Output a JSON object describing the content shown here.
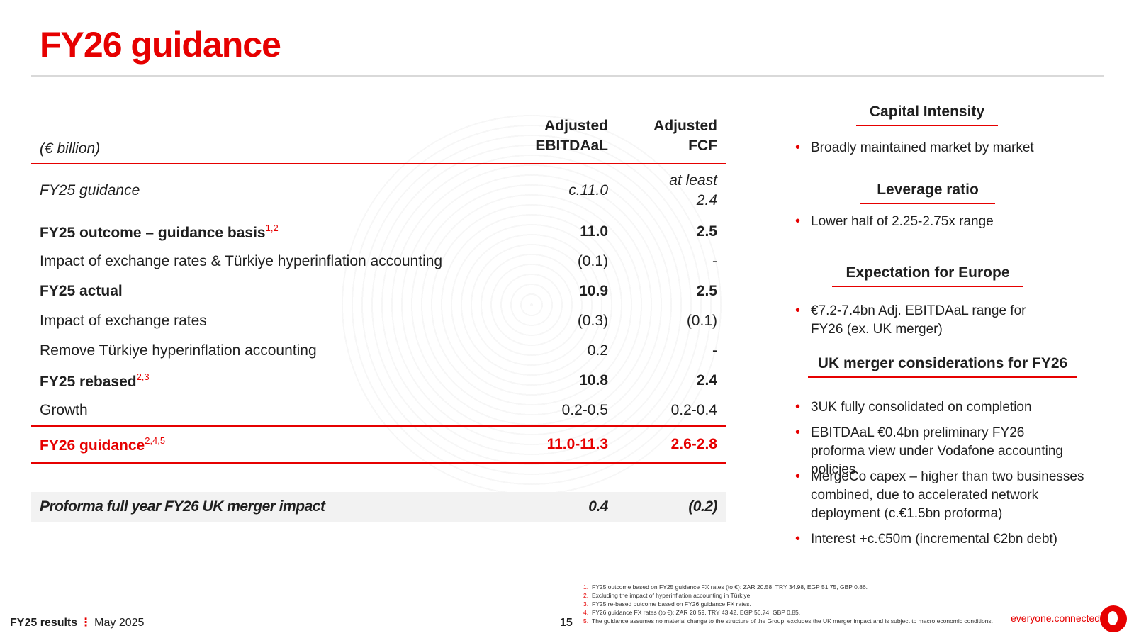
{
  "title": "FY26 guidance",
  "table": {
    "unit_label": "(€ billion)",
    "col1_line1": "Adjusted",
    "col1_line2": "EBITDAaL",
    "col2_line1": "Adjusted",
    "col2_line2": "FCF",
    "rows": [
      {
        "label": "FY25 guidance",
        "v1": "c.11.0",
        "v2_line1": "at least",
        "v2_line2": "2.4"
      },
      {
        "label": "FY25 outcome – guidance basis",
        "sup": "1,2",
        "v1": "11.0",
        "v2": "2.5"
      },
      {
        "label": "Impact of exchange rates & Türkiye hyperinflation accounting",
        "v1": "(0.1)",
        "v2": "-"
      },
      {
        "label": "FY25 actual",
        "v1": "10.9",
        "v2": "2.5"
      },
      {
        "label": "Impact of exchange rates",
        "v1": "(0.3)",
        "v2": "(0.1)"
      },
      {
        "label": "Remove Türkiye hyperinflation accounting",
        "v1": "0.2",
        "v2": "-"
      },
      {
        "label": "FY25 rebased",
        "sup": "2,3",
        "v1": "10.8",
        "v2": "2.4"
      },
      {
        "label": "Growth",
        "v1": "0.2-0.5",
        "v2": "0.2-0.4"
      },
      {
        "label": "FY26 guidance",
        "sup": "2,4,5",
        "v1": "11.0-11.3",
        "v2": "2.6-2.8"
      },
      {
        "label": "Proforma full year FY26 UK merger impact",
        "v1": "0.4",
        "v2": "(0.2)"
      }
    ]
  },
  "side": {
    "capital": {
      "title": "Capital Intensity",
      "bullets": [
        "Broadly maintained market by market"
      ]
    },
    "leverage": {
      "title": "Leverage ratio",
      "bullets": [
        "Lower half of 2.25-2.75x range"
      ]
    },
    "europe": {
      "title": "Expectation for Europe",
      "bullets": [
        "€7.2-7.4bn Adj. EBITDAaL range for FY26 (ex. UK merger)"
      ]
    },
    "uk": {
      "title": "UK merger considerations for FY26",
      "bullets": [
        "3UK fully consolidated on completion",
        "EBITDAaL €0.4bn preliminary FY26 proforma view under Vodafone accounting policies",
        "MergeCo capex – higher than two businesses combined, due to accelerated network deployment (c.€1.5bn proforma)",
        "Interest +c.€50m (incremental €2bn debt)"
      ]
    }
  },
  "footer": {
    "brand": "FY25 results",
    "separator": "⋮",
    "date": "May 2025",
    "page": "15",
    "tagline": "everyone.connected",
    "logo_icon": "vodafone-speechmark-icon",
    "notes": [
      {
        "num": "1.",
        "text": "FY25 outcome based on FY25 guidance FX rates (to €): ZAR 20.58, TRY 34.98, EGP 51.75, GBP 0.86."
      },
      {
        "num": "2.",
        "text": "Excluding the impact of hyperinflation accounting in Türkiye."
      },
      {
        "num": "3.",
        "text": "FY25 re-based outcome based on FY26 guidance FX rates."
      },
      {
        "num": "4.",
        "text": "FY26 guidance FX rates (to €): ZAR 20.59, TRY 43.42, EGP 56.74, GBP 0.85."
      },
      {
        "num": "5.",
        "text": "The guidance assumes no material change to the structure of the Group, excludes the UK merger impact and is subject to macro economic conditions."
      }
    ]
  },
  "colors": {
    "accent": "#e60000",
    "rule": "#d9d9d9",
    "shade": "#f2f2f2"
  }
}
